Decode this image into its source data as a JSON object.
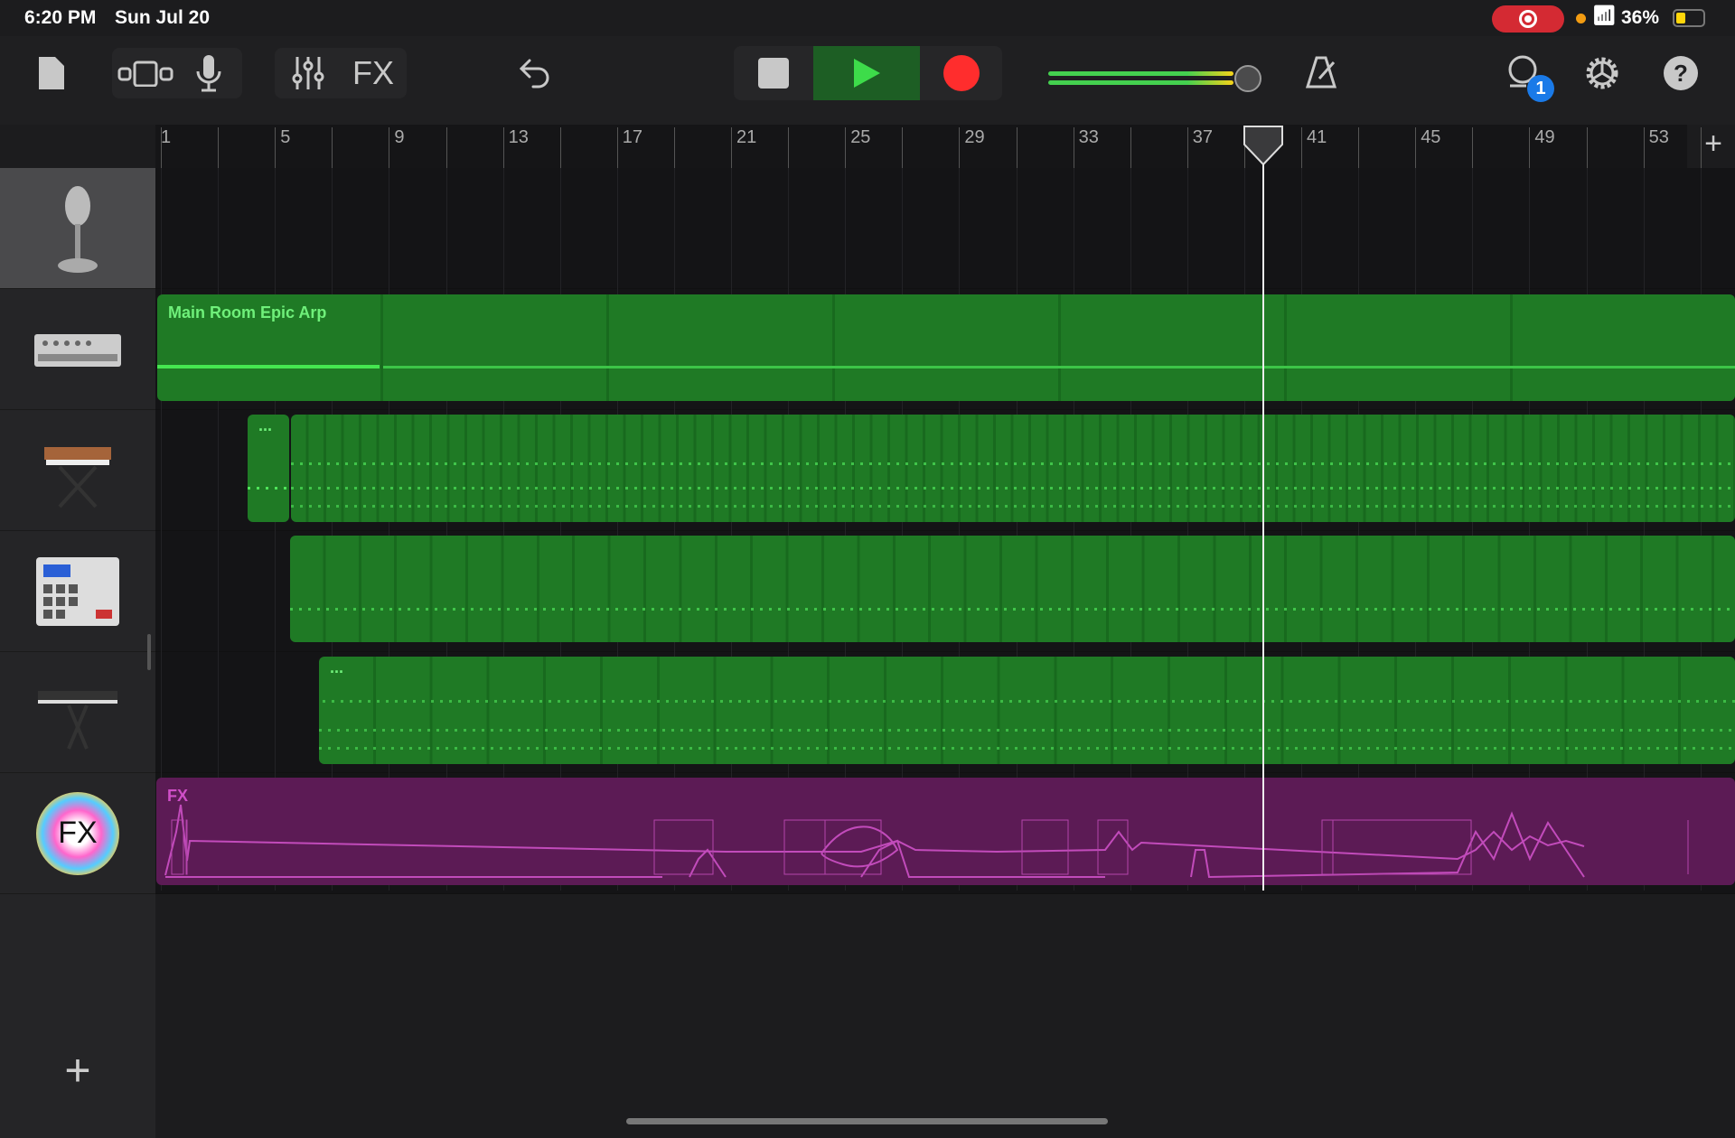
{
  "status": {
    "time": "6:20 PM",
    "date": "Sun Jul 20",
    "battery": "36%",
    "battery_level": 0.36,
    "recording_indicator": "screen-record-icon"
  },
  "toolbar": {
    "fx_label": "FX",
    "notification_count": "1",
    "master_volume": 0.92,
    "transport": {
      "play_active": true,
      "colors": {
        "play": "#3ddc4a",
        "record": "#ff2d2d",
        "play_bg": "#1d5e24"
      }
    }
  },
  "ruler": {
    "labels": [
      "1",
      "5",
      "9",
      "13",
      "17",
      "21",
      "25",
      "29",
      "33",
      "37",
      "41",
      "45",
      "49",
      "53"
    ],
    "playhead_bar": 39.7,
    "add_label": "+"
  },
  "tracks": [
    {
      "instrument": "microphone",
      "region": null
    },
    {
      "instrument": "drum-machine",
      "region": {
        "name": "Main Room Epic Arp",
        "color": "#1f7a25"
      }
    },
    {
      "instrument": "synth-keyboard",
      "region": {
        "name": "...",
        "color": "#1f7a25"
      }
    },
    {
      "instrument": "beat-sequencer",
      "region": {
        "name": "",
        "color": "#1f7a25"
      }
    },
    {
      "instrument": "keyboard",
      "region": {
        "name": "...",
        "color": "#1f7a25"
      }
    },
    {
      "instrument": "fx",
      "region": {
        "name": "FX",
        "color": "#5c1b55"
      }
    }
  ],
  "sidebar": {
    "fx_icon_label": "FX",
    "add_track": "+"
  }
}
